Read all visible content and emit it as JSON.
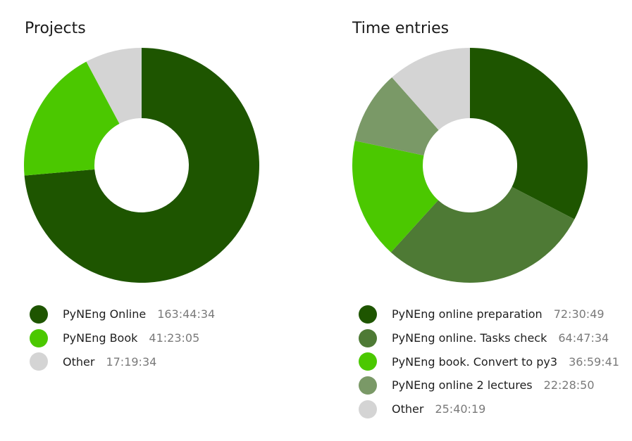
{
  "chart_data": [
    {
      "type": "pie",
      "title": "Projects",
      "slices": [
        {
          "label": "PyNEng Online",
          "duration": "163:44:34",
          "value": 589474,
          "color": "#1e5500"
        },
        {
          "label": "PyNEng Book",
          "duration": "41:23:05",
          "value": 148985,
          "color": "#4bc800"
        },
        {
          "label": "Other",
          "duration": "17:19:34",
          "value": 62374,
          "color": "#d4d4d4"
        }
      ]
    },
    {
      "type": "pie",
      "title": "Time entries",
      "slices": [
        {
          "label": "PyNEng online preparation",
          "duration": "72:30:49",
          "value": 261049,
          "color": "#1e5500"
        },
        {
          "label": "PyNEng online. Tasks check",
          "duration": "64:47:34",
          "value": 233254,
          "color": "#4e7a35"
        },
        {
          "label": "PyNEng book. Convert to py3",
          "duration": "36:59:41",
          "value": 133181,
          "color": "#4bc800"
        },
        {
          "label": "PyNEng online 2 lectures",
          "duration": "22:28:50",
          "value": 80930,
          "color": "#7a9967"
        },
        {
          "label": "Other",
          "duration": "25:40:19",
          "value": 92419,
          "color": "#d4d4d4"
        }
      ]
    }
  ]
}
